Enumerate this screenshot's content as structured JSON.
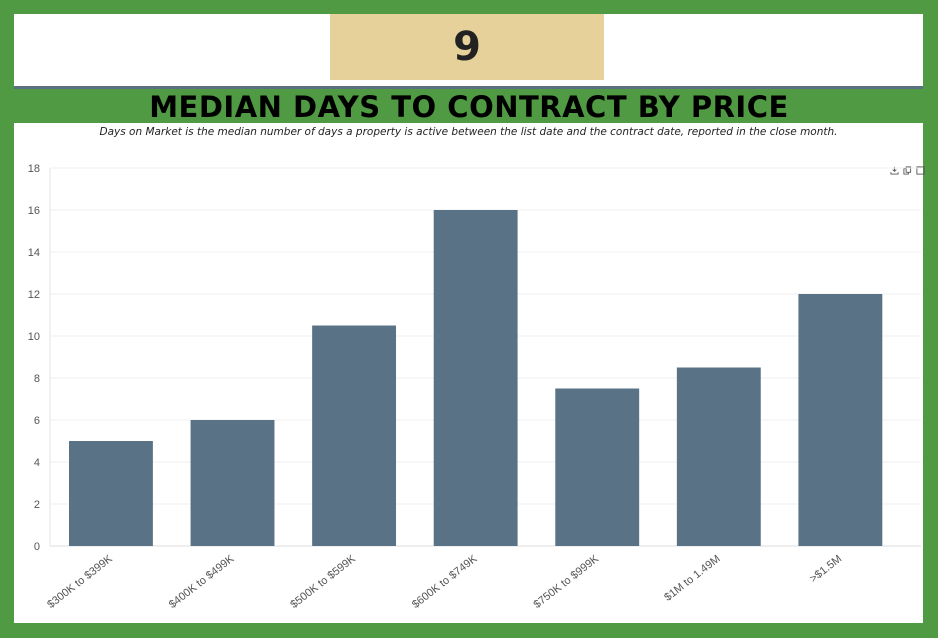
{
  "header": {
    "page_number": "9",
    "title": "MEDIAN DAYS TO CONTRACT BY PRICE",
    "subtitle": "Days on Market is the median number of days a property is active between the list date and the contract date, reported in the close month."
  },
  "toolbar": {
    "icons": [
      "download-icon",
      "copy-icon",
      "expand-icon"
    ]
  },
  "colors": {
    "background": "#4f9a42",
    "badge": "#e6d19b",
    "bar": "#5a7286",
    "rule": "#5b7181"
  },
  "chart_data": {
    "type": "bar",
    "title": "",
    "xlabel": "",
    "ylabel": "",
    "categories": [
      "$300K to $399K",
      "$400K to $499K",
      "$500K to $599K",
      "$600K to $749K",
      "$750K to $999K",
      "$1M to 1.49M",
      ">$1.5M"
    ],
    "values": [
      5,
      6,
      10.5,
      16,
      7.5,
      8.5,
      12
    ],
    "ylim": [
      0,
      18
    ],
    "yticks": [
      0,
      2,
      4,
      6,
      8,
      10,
      12,
      14,
      16,
      18
    ],
    "grid": true,
    "legend": "none"
  }
}
